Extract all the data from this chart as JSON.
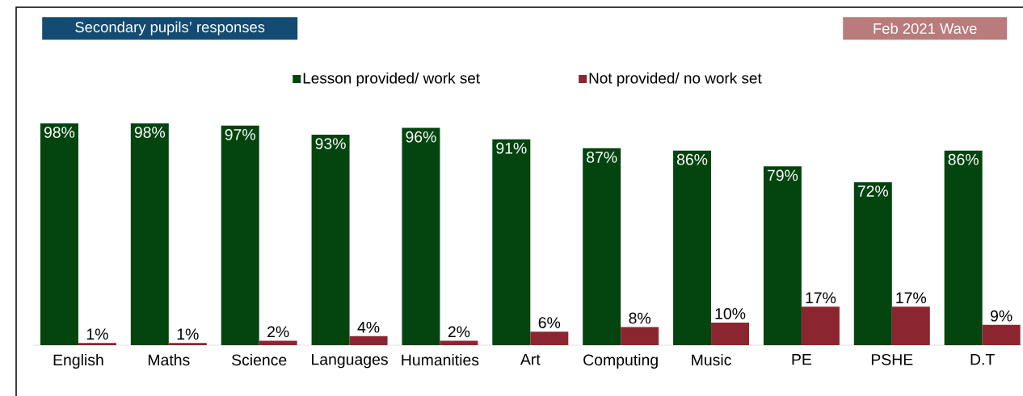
{
  "chart_data": {
    "type": "bar",
    "title": "Secondary pupils’ responses",
    "subtitle": "Feb 2021 Wave",
    "legend": "top",
    "categories": [
      "English",
      "Maths",
      "Science",
      "Languages",
      "Humanities",
      "Art",
      "Computing",
      "Music",
      "PE",
      "PSHE",
      "D.T"
    ],
    "series": [
      {
        "name": "Lesson provided/ work set",
        "color": "#03440f",
        "values": [
          98,
          98,
          97,
          93,
          96,
          91,
          87,
          86,
          79,
          72,
          86
        ],
        "value_labels": [
          "98%",
          "98%",
          "97%",
          "93%",
          "96%",
          "91%",
          "87%",
          "86%",
          "79%",
          "72%",
          "86%"
        ]
      },
      {
        "name": "Not provided/ no work set",
        "color": "#8b2630",
        "values": [
          1,
          1,
          2,
          4,
          2,
          6,
          8,
          10,
          17,
          17,
          9
        ],
        "value_labels": [
          "1%",
          "1%",
          "2%",
          "4%",
          "2%",
          "6%",
          "8%",
          "10%",
          "17%",
          "17%",
          "9%"
        ]
      }
    ]
  }
}
